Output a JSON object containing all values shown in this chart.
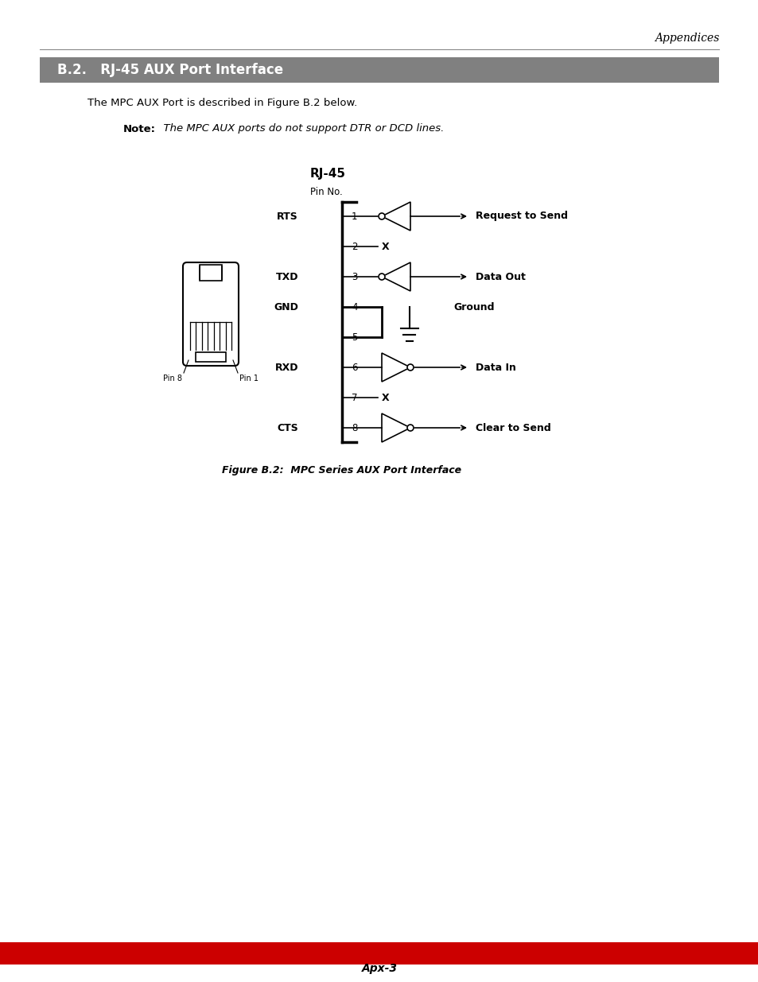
{
  "title_header": "Appendices",
  "section_title": "B.2.   RJ-45 AUX Port Interface",
  "section_bg": "#808080",
  "section_fg": "#ffffff",
  "body_text": "The MPC AUX Port is described in Figure B.2 below.",
  "note_bold": "Note:",
  "note_italic": "  The MPC AUX ports do not support DTR or DCD lines.",
  "diagram_title": "RJ-45",
  "diagram_subtitle": "Pin No.",
  "pins": [
    {
      "num": 1,
      "label": "RTS",
      "type": "output_tri",
      "signal": "Request to Send"
    },
    {
      "num": 2,
      "label": "",
      "type": "x",
      "signal": ""
    },
    {
      "num": 3,
      "label": "TXD",
      "type": "output_tri",
      "signal": "Data Out"
    },
    {
      "num": 4,
      "label": "GND",
      "type": "ground",
      "signal": "Ground"
    },
    {
      "num": 5,
      "label": "",
      "type": "ground_bot",
      "signal": ""
    },
    {
      "num": 6,
      "label": "RXD",
      "type": "input_tri",
      "signal": "Data In"
    },
    {
      "num": 7,
      "label": "",
      "type": "x",
      "signal": ""
    },
    {
      "num": 8,
      "label": "CTS",
      "type": "input_tri",
      "signal": "Clear to Send"
    }
  ],
  "figure_caption": "Figure B.2:  MPC Series AUX Port Interface",
  "footer_text": "Apx-3",
  "footer_bar_color": "#cc0000",
  "page_bg": "#ffffff",
  "line_color": "#000000"
}
